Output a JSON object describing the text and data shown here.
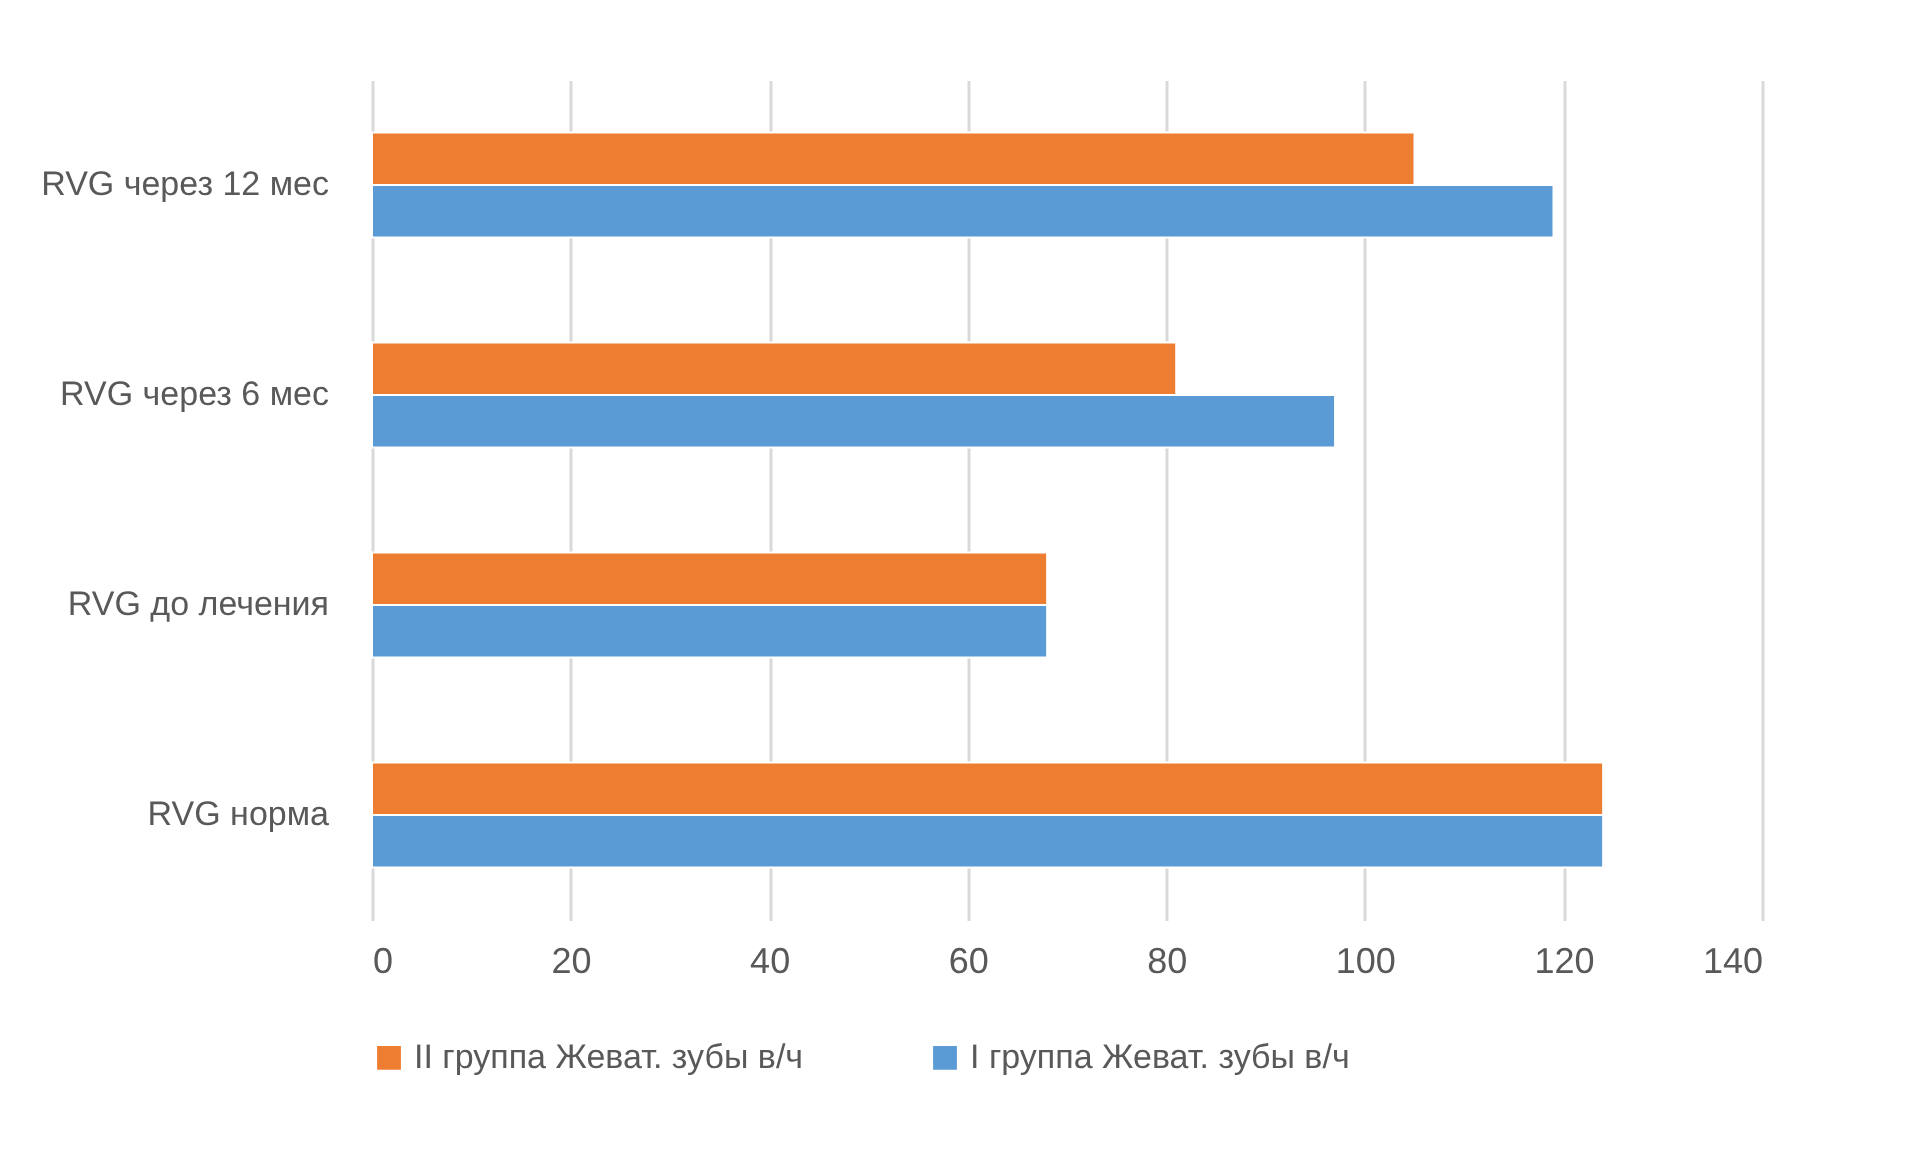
{
  "chart_data": {
    "type": "bar",
    "orientation": "horizontal",
    "categories": [
      "RVG через 12 мес",
      "RVG через 6 мес",
      "RVG до лечения",
      "RVG норма"
    ],
    "series": [
      {
        "name": "II группа Жеват. зубы в/ч",
        "color": "#ed7d31",
        "values": [
          105,
          81,
          68,
          124
        ]
      },
      {
        "name": "I группа Жеват. зубы в/ч",
        "color": "#5b9bd5",
        "values": [
          119,
          97,
          68,
          124
        ]
      }
    ],
    "xlim": [
      0,
      140
    ],
    "xticks": [
      0,
      20,
      40,
      60,
      80,
      100,
      120,
      140
    ],
    "grid": "x",
    "legend": "bottom"
  }
}
